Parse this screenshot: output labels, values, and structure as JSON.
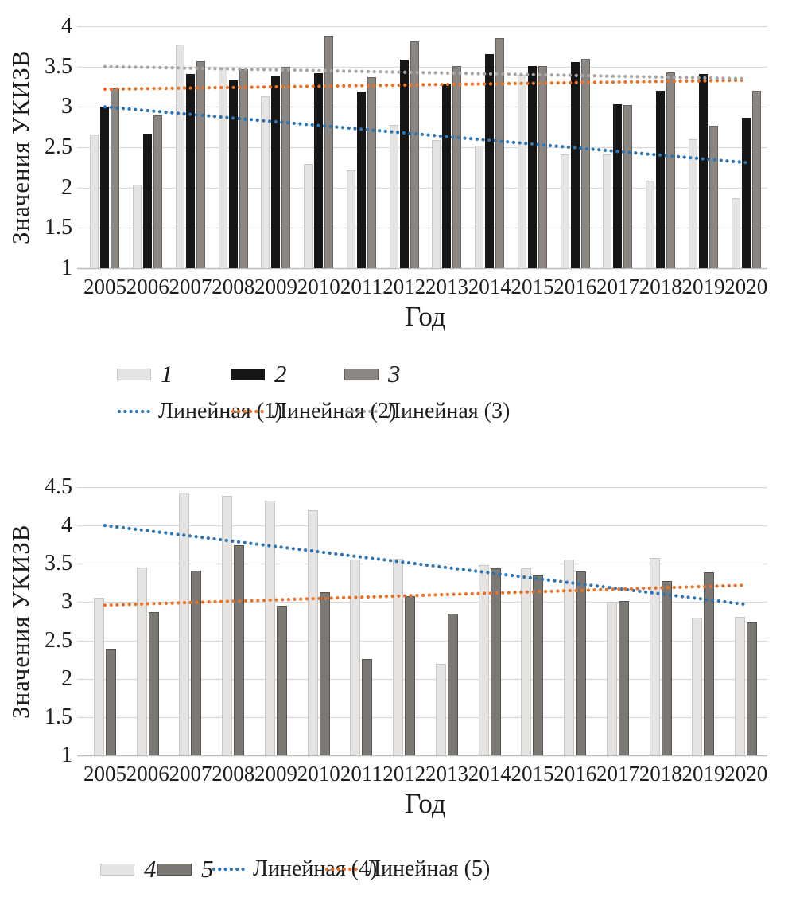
{
  "page": {
    "background": "#ffffff"
  },
  "chart_data": [
    {
      "type": "bar",
      "title": "",
      "ylabel": "Значения УКИЗВ",
      "xlabel": "Год",
      "ylim": [
        1,
        4
      ],
      "yticks": [
        "4",
        "3.5",
        "3",
        "2.5",
        "2",
        "1.5",
        "1"
      ],
      "grid": true,
      "legend_position": "below",
      "categories": [
        "2005",
        "2006",
        "2007",
        "2008",
        "2009",
        "2010",
        "2011",
        "2012",
        "2013",
        "2014",
        "2015",
        "2016",
        "2017",
        "2018",
        "2019",
        "2020"
      ],
      "series": [
        {
          "name": "1",
          "color": "#e6e4e2",
          "border": "#c9c7c5",
          "values": [
            2.66,
            2.04,
            3.77,
            3.49,
            3.13,
            2.29,
            2.21,
            2.78,
            2.59,
            2.52,
            3.4,
            2.41,
            2.41,
            2.09,
            2.6,
            1.87
          ]
        },
        {
          "name": "2",
          "color": "#161616",
          "border": "#161616",
          "values": [
            3.0,
            2.67,
            3.41,
            3.33,
            3.38,
            3.42,
            3.19,
            3.59,
            3.28,
            3.66,
            3.51,
            3.56,
            3.03,
            3.2,
            3.41,
            2.87
          ]
        },
        {
          "name": "3",
          "color": "#8b8681",
          "border": "#67635f",
          "values": [
            3.23,
            2.9,
            3.57,
            3.47,
            3.5,
            3.88,
            3.37,
            3.81,
            3.51,
            3.85,
            3.51,
            3.6,
            3.02,
            3.43,
            2.77,
            3.2
          ]
        }
      ],
      "trend_lines": [
        {
          "name": "Линейная (1)",
          "color": "#2e75b6",
          "start": 3.0,
          "end": 2.31
        },
        {
          "name": "Линейная (2)",
          "color": "#ed7123",
          "start": 3.22,
          "end": 3.33
        },
        {
          "name": "Линейная (3)",
          "color": "#a8a5a2",
          "start": 3.5,
          "end": 3.35
        }
      ]
    },
    {
      "type": "bar",
      "title": "",
      "ylabel": "Значения УКИЗВ",
      "xlabel": "Год",
      "ylim": [
        1,
        4.5
      ],
      "yticks": [
        "4.5",
        "4",
        "3.5",
        "3",
        "2.5",
        "2",
        "1.5",
        "1"
      ],
      "grid": true,
      "legend_position": "below",
      "categories": [
        "2005",
        "2006",
        "2007",
        "2008",
        "2009",
        "2010",
        "2011",
        "2012",
        "2013",
        "2014",
        "2015",
        "2016",
        "2017",
        "2018",
        "2019",
        "2020"
      ],
      "series": [
        {
          "name": "4",
          "color": "#e6e4e2",
          "border": "#c9c7c5",
          "values": [
            3.06,
            3.45,
            4.43,
            4.39,
            4.32,
            4.2,
            3.56,
            3.57,
            2.19,
            3.48,
            3.44,
            3.56,
            3.0,
            3.58,
            2.8,
            2.81
          ]
        },
        {
          "name": "5",
          "color": "#7c7874",
          "border": "#56524e",
          "values": [
            2.38,
            2.87,
            3.41,
            3.74,
            2.95,
            3.13,
            2.26,
            3.08,
            2.85,
            3.44,
            3.35,
            3.4,
            3.02,
            3.28,
            3.39,
            2.74
          ]
        }
      ],
      "trend_lines": [
        {
          "name": "Линейная (4)",
          "color": "#2e75b6",
          "start": 4.0,
          "end": 2.97
        },
        {
          "name": "Линейная (5)",
          "color": "#ed7123",
          "start": 2.96,
          "end": 3.22
        }
      ]
    }
  ],
  "colors": {
    "gridline": "#d9d9d9",
    "axis_line": "#bdbdbd",
    "text": "#1c1c1c"
  }
}
